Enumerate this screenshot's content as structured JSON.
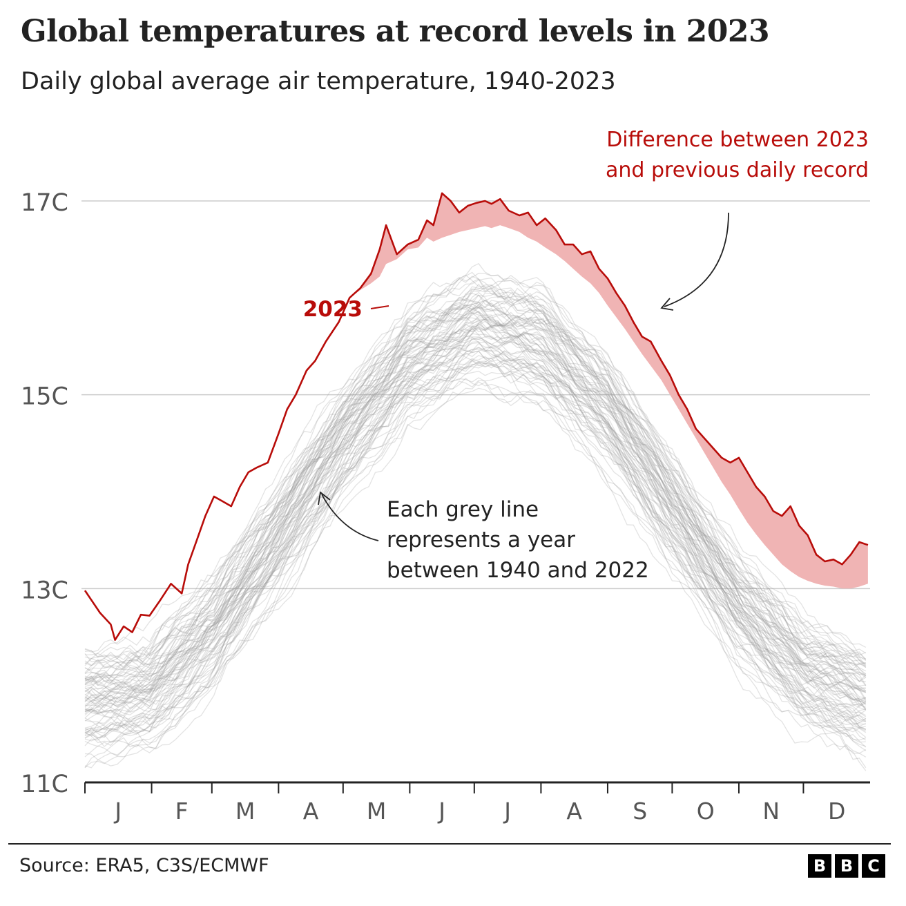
{
  "title": "Global temperatures at record levels in 2023",
  "subtitle": "Daily global average air temperature, 1940-2023",
  "source": "Source: ERA5, C3S/ECMWF",
  "logo_letters": [
    "B",
    "B",
    "C"
  ],
  "colors": {
    "highlight": "#b80c09",
    "difference_fill": "#f0b4b4",
    "grey_lines": "#9a9a9a",
    "gridline": "#cccccc",
    "text": "#222222",
    "tick_label": "#555555"
  },
  "chart_data": {
    "type": "line",
    "title": "Global temperatures at record levels in 2023",
    "ylim": [
      11,
      17.2
    ],
    "y_ticks": [
      {
        "value": 17,
        "label": "17C"
      },
      {
        "value": 15,
        "label": "15C"
      },
      {
        "value": 13,
        "label": "13C"
      },
      {
        "value": 11,
        "label": "11C"
      }
    ],
    "x_domain": [
      0,
      365
    ],
    "months": [
      "J",
      "F",
      "M",
      "A",
      "M",
      "J",
      "J",
      "A",
      "S",
      "O",
      "N",
      "D"
    ],
    "month_start_days": [
      0,
      31,
      59,
      90,
      120,
      151,
      181,
      212,
      243,
      273,
      304,
      334,
      365
    ],
    "grid": "horizontal",
    "series_2023": {
      "name": "2023",
      "x": [
        0,
        7,
        12,
        14,
        18,
        22,
        26,
        30,
        35,
        40,
        45,
        48,
        52,
        56,
        60,
        64,
        68,
        72,
        76,
        80,
        85,
        90,
        94,
        98,
        103,
        107,
        112,
        118,
        123,
        128,
        133,
        137,
        140,
        145,
        150,
        155,
        159,
        162,
        166,
        170,
        174,
        178,
        182,
        186,
        189,
        193,
        197,
        202,
        206,
        210,
        214,
        219,
        223,
        227,
        231,
        235,
        239,
        243,
        247,
        251,
        255,
        259,
        263,
        268,
        272,
        276,
        280,
        284,
        288,
        292,
        296,
        300,
        304,
        308,
        312,
        316,
        320,
        324,
        328,
        332,
        336,
        340,
        344,
        348,
        352,
        356,
        360,
        364
      ],
      "values": [
        12.98,
        12.75,
        12.63,
        12.47,
        12.61,
        12.55,
        12.73,
        12.72,
        12.88,
        13.05,
        12.95,
        13.25,
        13.5,
        13.75,
        13.95,
        13.9,
        13.85,
        14.05,
        14.2,
        14.25,
        14.3,
        14.6,
        14.85,
        15.0,
        15.25,
        15.35,
        15.55,
        15.75,
        16.0,
        16.1,
        16.25,
        16.5,
        16.75,
        16.45,
        16.55,
        16.6,
        16.8,
        16.75,
        17.08,
        17.0,
        16.88,
        16.95,
        16.98,
        17.0,
        16.97,
        17.02,
        16.9,
        16.85,
        16.88,
        16.75,
        16.82,
        16.7,
        16.55,
        16.55,
        16.45,
        16.48,
        16.3,
        16.2,
        16.05,
        15.92,
        15.75,
        15.6,
        15.55,
        15.35,
        15.2,
        15.0,
        14.85,
        14.65,
        14.55,
        14.45,
        14.35,
        14.3,
        14.35,
        14.2,
        14.05,
        13.95,
        13.8,
        13.75,
        13.85,
        13.65,
        13.55,
        13.35,
        13.28,
        13.3,
        13.25,
        13.35,
        13.48,
        13.45
      ]
    },
    "previous_record": {
      "x": [
        0,
        7,
        12,
        14,
        18,
        22,
        26,
        30,
        35,
        40,
        45,
        48,
        52,
        56,
        60,
        64,
        68,
        72,
        76,
        80,
        85,
        90,
        94,
        98,
        103,
        107,
        112,
        118,
        123,
        128,
        133,
        137,
        140,
        145,
        150,
        155,
        159,
        162,
        166,
        170,
        174,
        178,
        182,
        186,
        189,
        193,
        197,
        202,
        206,
        210,
        214,
        219,
        223,
        227,
        231,
        235,
        239,
        243,
        247,
        251,
        255,
        259,
        263,
        268,
        272,
        276,
        280,
        284,
        288,
        292,
        296,
        300,
        304,
        308,
        312,
        316,
        320,
        324,
        328,
        332,
        336,
        340,
        344,
        348,
        352,
        356,
        360,
        364
      ],
      "values": [
        12.98,
        12.75,
        12.63,
        12.47,
        12.61,
        12.55,
        12.73,
        12.72,
        12.88,
        13.05,
        12.95,
        13.25,
        13.5,
        13.75,
        13.95,
        13.9,
        13.85,
        14.05,
        14.2,
        14.25,
        14.3,
        14.6,
        14.85,
        15.0,
        15.25,
        15.35,
        15.55,
        15.75,
        16.0,
        16.08,
        16.15,
        16.22,
        16.35,
        16.4,
        16.5,
        16.52,
        16.62,
        16.58,
        16.62,
        16.65,
        16.68,
        16.7,
        16.72,
        16.74,
        16.72,
        16.75,
        16.72,
        16.68,
        16.62,
        16.58,
        16.52,
        16.45,
        16.38,
        16.3,
        16.22,
        16.15,
        16.05,
        15.92,
        15.8,
        15.68,
        15.55,
        15.42,
        15.3,
        15.15,
        15.0,
        14.85,
        14.7,
        14.55,
        14.4,
        14.25,
        14.1,
        13.97,
        13.82,
        13.68,
        13.56,
        13.45,
        13.35,
        13.25,
        13.18,
        13.12,
        13.08,
        13.05,
        13.03,
        13.02,
        13.0,
        13.0,
        13.02,
        13.05
      ]
    },
    "grey_lines_note": "Each grey line represents a year between 1940 and 2022",
    "grey_years": [
      1940,
      2022
    ],
    "grey_mean_envelope": {
      "x": [
        0,
        30,
        60,
        90,
        120,
        150,
        182,
        212,
        243,
        273,
        304,
        334,
        364
      ],
      "values": [
        11.85,
        11.95,
        12.6,
        13.55,
        14.55,
        15.35,
        15.75,
        15.55,
        14.85,
        13.85,
        12.85,
        12.15,
        11.85
      ]
    },
    "annotations": [
      {
        "id": "label-2023",
        "text": "2023"
      },
      {
        "id": "difference",
        "lines": [
          "Difference between 2023",
          "and previous daily record"
        ]
      },
      {
        "id": "grey",
        "lines": [
          "Each grey line",
          "represents a year",
          "between 1940 and 2022"
        ]
      }
    ]
  }
}
